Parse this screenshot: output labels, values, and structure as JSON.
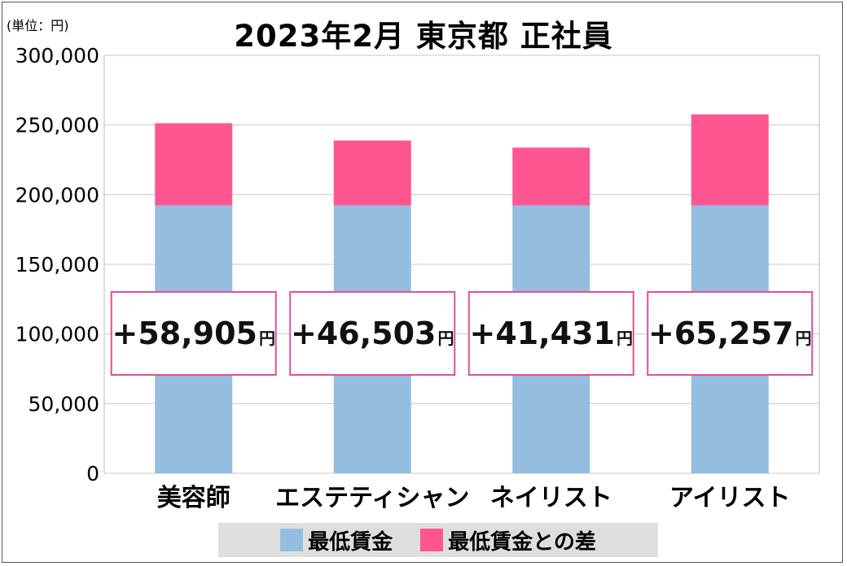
{
  "unit_label": "(単位：円)",
  "chart_data": {
    "type": "bar",
    "stacked": true,
    "title": "2023年2月 東京都 正社員",
    "categories": [
      "美容師",
      "エステティシャン",
      "ネイリスト",
      "アイリスト"
    ],
    "ylim": [
      0,
      300000
    ],
    "yticks": [
      0,
      50000,
      100000,
      150000,
      200000,
      250000,
      300000
    ],
    "ytick_labels": [
      "0",
      "50,000",
      "100,000",
      "150,000",
      "200,000",
      "250,000",
      "300,000"
    ],
    "grid": true,
    "legend_position": "bottom",
    "series": [
      {
        "name": "最低賃金",
        "color": "#94bedf",
        "values": [
          192335,
          192335,
          192335,
          192335
        ]
      },
      {
        "name": "最低賃金との差",
        "color": "#ff5590",
        "values": [
          58905,
          46503,
          41431,
          65257
        ]
      }
    ],
    "annotations": [
      {
        "text": "+58,905",
        "unit": "円"
      },
      {
        "text": "+46,503",
        "unit": "円"
      },
      {
        "text": "+41,431",
        "unit": "円"
      },
      {
        "text": "+65,257",
        "unit": "円"
      }
    ]
  }
}
